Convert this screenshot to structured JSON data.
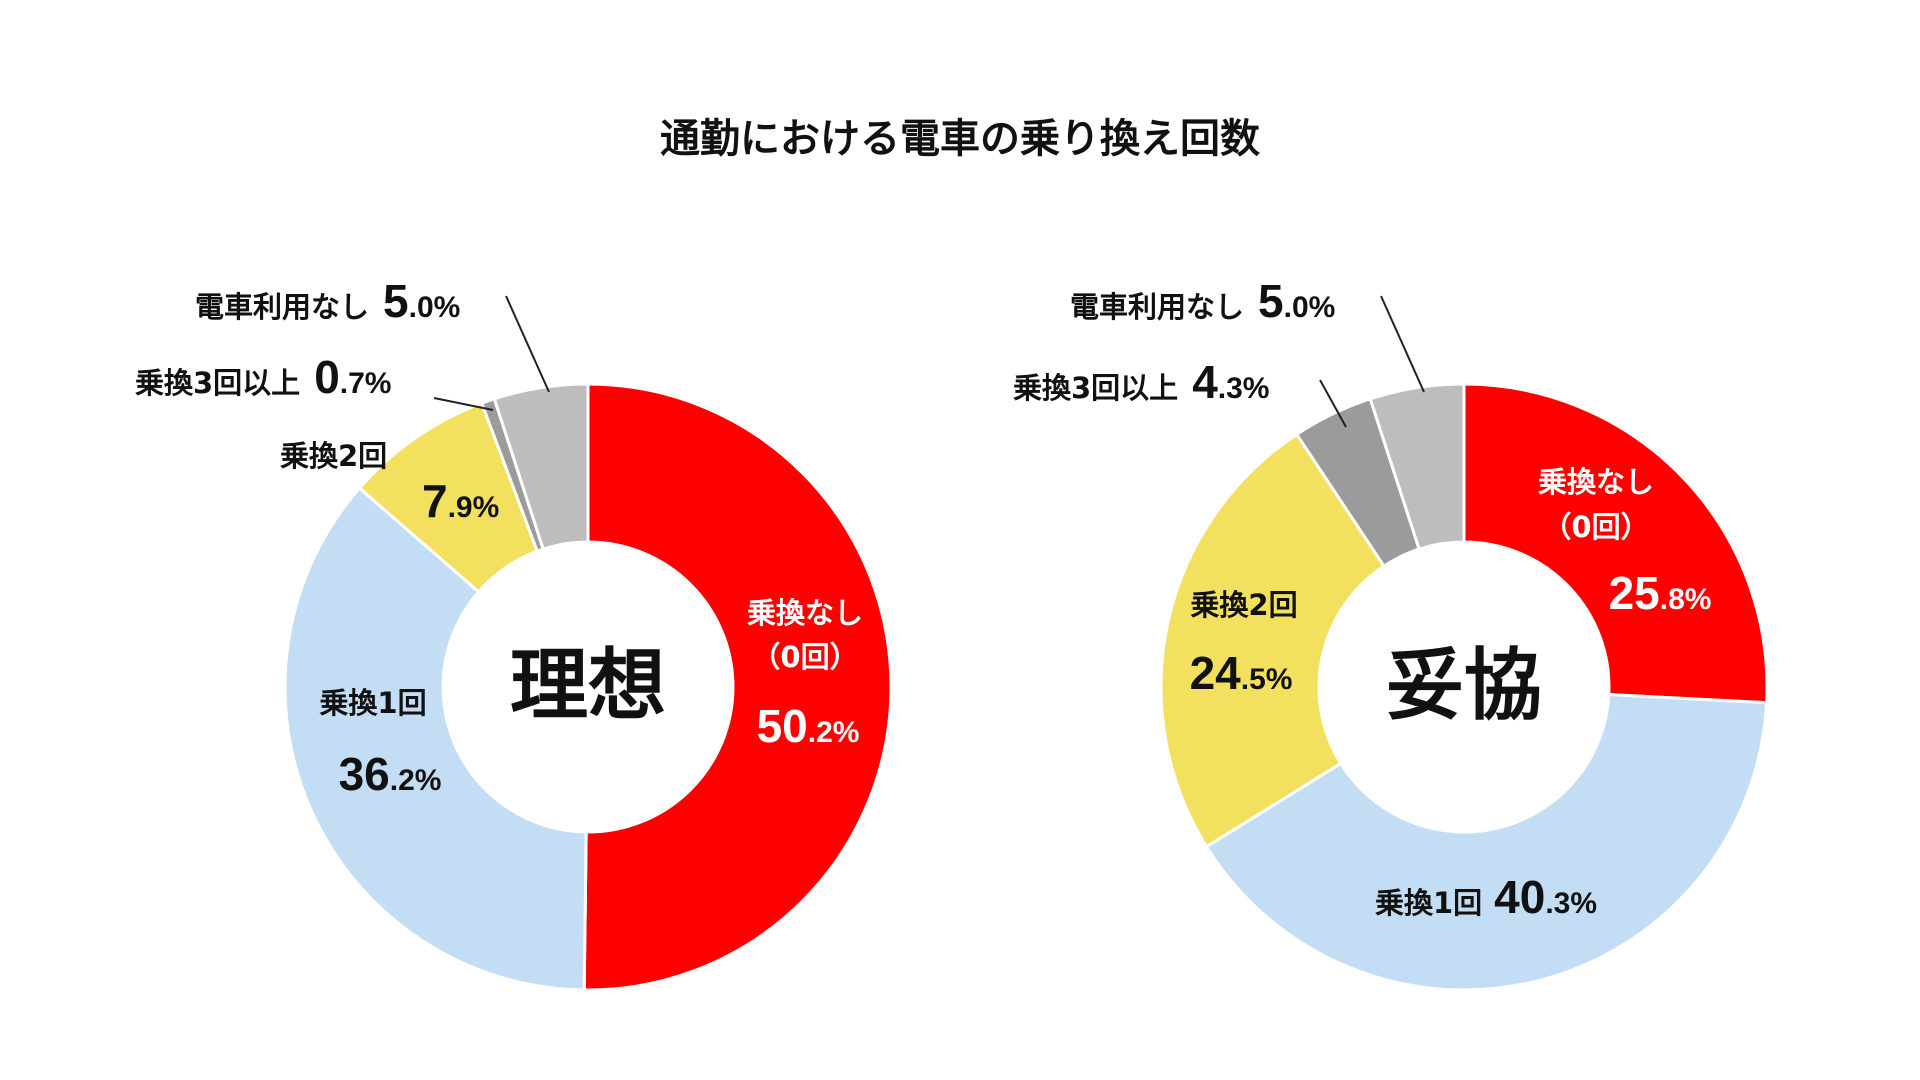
{
  "chart_data": {
    "type": "donut",
    "title": "通勤における電車の乗り換え回数",
    "charts": [
      {
        "center_label": "理想",
        "slices": [
          {
            "label": "乗換なし",
            "label_line2": "（0回）",
            "value": 50.2,
            "int_part": "50",
            "dec_part": ".2%",
            "color": "#ff0000"
          },
          {
            "label": "乗換1回",
            "value": 36.2,
            "int_part": "36",
            "dec_part": ".2%",
            "color": "#c3ddf4"
          },
          {
            "label": "乗換2回",
            "value": 7.9,
            "int_part": "7",
            "dec_part": ".9%",
            "color": "#f2e05e"
          },
          {
            "label": "乗換3回以上",
            "value": 0.7,
            "int_part": "0",
            "dec_part": ".7%",
            "color": "#9b9b9b"
          },
          {
            "label": "電車利用なし",
            "value": 5.0,
            "int_part": "5",
            "dec_part": ".0%",
            "color": "#bdbdbd"
          }
        ]
      },
      {
        "center_label": "妥協",
        "slices": [
          {
            "label": "乗換なし",
            "label_line2": "（0回）",
            "value": 25.8,
            "int_part": "25",
            "dec_part": ".8%",
            "color": "#ff0000"
          },
          {
            "label": "乗換1回",
            "value": 40.3,
            "int_part": "40",
            "dec_part": ".3%",
            "color": "#c3ddf4"
          },
          {
            "label": "乗換2回",
            "value": 24.5,
            "int_part": "24",
            "dec_part": ".5%",
            "color": "#f2e05e"
          },
          {
            "label": "乗換3回以上",
            "value": 4.3,
            "int_part": "4",
            "dec_part": ".3%",
            "color": "#9b9b9b"
          },
          {
            "label": "電車利用なし",
            "value": 5.0,
            "int_part": "5",
            "dec_part": ".0%",
            "color": "#bdbdbd"
          }
        ]
      }
    ]
  }
}
